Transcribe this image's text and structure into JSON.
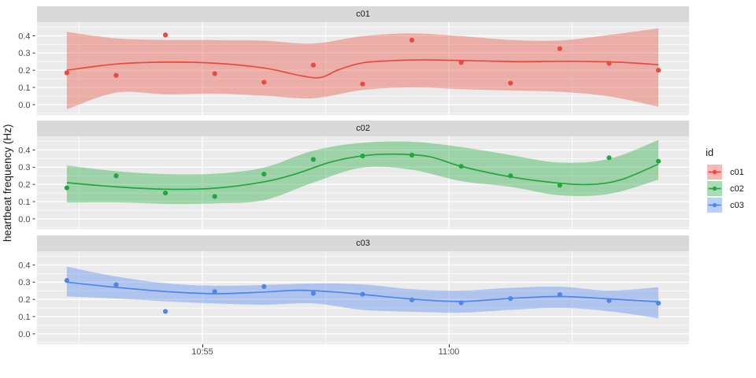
{
  "legend": {
    "title": "id",
    "entries": [
      {
        "label": "c01",
        "color": "#e84b3e"
      },
      {
        "label": "c02",
        "color": "#21a73e"
      },
      {
        "label": "c03",
        "color": "#4f86ec"
      }
    ]
  },
  "chart_data": {
    "type": "scatter",
    "geoms": [
      "point",
      "smooth_line",
      "confidence_band"
    ],
    "title": "",
    "xlabel": "",
    "ylabel": "heartbeat frequency (Hz)",
    "facet_by": "id",
    "grid": "on",
    "legend_position": "right",
    "panel_background": "#ebebeb",
    "strip_background": "#d9d9d9",
    "band_opacity": 0.39,
    "x_axis": {
      "note": "x values are decimal minutes after 10:50",
      "domain_minutes": [
        1.645,
        14.872
      ],
      "ticks": [
        {
          "minutes": 5,
          "label": "10:55"
        },
        {
          "minutes": 10,
          "label": "11:00"
        }
      ],
      "minor_minutes": [
        2.5,
        7.5,
        12.5
      ]
    },
    "y_axis": {
      "domain": [
        -0.06,
        0.48
      ],
      "ticks": [
        0.0,
        0.1,
        0.2,
        0.3,
        0.4
      ],
      "minor": [
        -0.05,
        0.05,
        0.15,
        0.25,
        0.35,
        0.45
      ]
    },
    "x_minutes": [
      2.25,
      3.25,
      4.25,
      5.25,
      6.25,
      7.25,
      8.25,
      9.25,
      10.25,
      11.25,
      12.25,
      13.25,
      14.25
    ],
    "facets": [
      {
        "id": "c01",
        "color": "#e84b3e",
        "points": [
          0.185,
          0.17,
          0.405,
          0.18,
          0.13,
          0.23,
          0.12,
          0.375,
          0.245,
          0.125,
          0.325,
          0.24,
          0.2
        ],
        "smooth": [
          [
            2.25,
            0.2
          ],
          [
            3.25,
            0.236
          ],
          [
            4.25,
            0.247
          ],
          [
            5.25,
            0.241
          ],
          [
            6.25,
            0.213
          ],
          [
            7.0,
            0.168
          ],
          [
            7.4,
            0.158
          ],
          [
            7.76,
            0.203
          ],
          [
            8.25,
            0.243
          ],
          [
            8.8,
            0.255
          ],
          [
            9.5,
            0.26
          ],
          [
            10.5,
            0.255
          ],
          [
            11.5,
            0.25
          ],
          [
            12.5,
            0.252
          ],
          [
            13.5,
            0.246
          ],
          [
            14.25,
            0.232
          ]
        ],
        "band": [
          [
            2.25,
            -0.027,
            0.423
          ],
          [
            3.25,
            0.07,
            0.385
          ],
          [
            4.25,
            0.06,
            0.376
          ],
          [
            5.25,
            0.064,
            0.375
          ],
          [
            6.25,
            0.052,
            0.372
          ],
          [
            7.25,
            0.037,
            0.355
          ],
          [
            8.25,
            0.085,
            0.398
          ],
          [
            9.25,
            0.1,
            0.414
          ],
          [
            10.25,
            0.09,
            0.398
          ],
          [
            11.25,
            0.082,
            0.376
          ],
          [
            12.25,
            0.075,
            0.373
          ],
          [
            13.25,
            0.048,
            0.405
          ],
          [
            14.25,
            -0.012,
            0.443
          ]
        ]
      },
      {
        "id": "c02",
        "color": "#21a73e",
        "points": [
          0.18,
          0.25,
          0.15,
          0.13,
          0.26,
          0.345,
          0.365,
          0.37,
          0.305,
          0.25,
          0.195,
          0.355,
          0.335
        ],
        "smooth": [
          [
            2.25,
            0.21
          ],
          [
            3.25,
            0.186
          ],
          [
            4.25,
            0.172
          ],
          [
            5.25,
            0.178
          ],
          [
            6.25,
            0.215
          ],
          [
            6.9,
            0.262
          ],
          [
            7.6,
            0.33
          ],
          [
            8.25,
            0.366
          ],
          [
            8.9,
            0.376
          ],
          [
            9.6,
            0.362
          ],
          [
            10.25,
            0.305
          ],
          [
            11.25,
            0.244
          ],
          [
            12.25,
            0.207
          ],
          [
            12.9,
            0.2
          ],
          [
            13.5,
            0.228
          ],
          [
            14.25,
            0.318
          ]
        ],
        "band": [
          [
            2.25,
            0.095,
            0.31
          ],
          [
            3.25,
            0.096,
            0.277
          ],
          [
            4.25,
            0.087,
            0.26
          ],
          [
            5.25,
            0.09,
            0.262
          ],
          [
            6.25,
            0.108,
            0.298
          ],
          [
            7.25,
            0.211,
            0.396
          ],
          [
            8.25,
            0.298,
            0.442
          ],
          [
            9.25,
            0.285,
            0.448
          ],
          [
            10.25,
            0.219,
            0.417
          ],
          [
            11.25,
            0.186,
            0.371
          ],
          [
            12.25,
            0.137,
            0.327
          ],
          [
            13.25,
            0.145,
            0.348
          ],
          [
            14.25,
            0.228,
            0.458
          ]
        ]
      },
      {
        "id": "c03",
        "color": "#4f86ec",
        "points": [
          0.31,
          0.285,
          0.13,
          0.245,
          0.275,
          0.235,
          0.23,
          0.197,
          0.18,
          0.205,
          0.228,
          0.193,
          0.178
        ],
        "smooth": [
          [
            2.25,
            0.3
          ],
          [
            3.25,
            0.27
          ],
          [
            4.25,
            0.246
          ],
          [
            5.25,
            0.233
          ],
          [
            6.25,
            0.243
          ],
          [
            6.95,
            0.253
          ],
          [
            7.7,
            0.243
          ],
          [
            8.25,
            0.229
          ],
          [
            9.25,
            0.202
          ],
          [
            10.25,
            0.188
          ],
          [
            11.25,
            0.206
          ],
          [
            12.25,
            0.217
          ],
          [
            13.25,
            0.203
          ],
          [
            14.25,
            0.186
          ]
        ],
        "band": [
          [
            2.25,
            0.217,
            0.39
          ],
          [
            3.25,
            0.205,
            0.333
          ],
          [
            4.25,
            0.189,
            0.294
          ],
          [
            5.25,
            0.176,
            0.279
          ],
          [
            6.25,
            0.169,
            0.284
          ],
          [
            7.25,
            0.177,
            0.292
          ],
          [
            8.25,
            0.139,
            0.287
          ],
          [
            9.25,
            0.128,
            0.259
          ],
          [
            10.25,
            0.123,
            0.251
          ],
          [
            11.25,
            0.139,
            0.267
          ],
          [
            12.25,
            0.151,
            0.274
          ],
          [
            13.25,
            0.131,
            0.251
          ],
          [
            14.25,
            0.09,
            0.271
          ]
        ]
      }
    ]
  }
}
